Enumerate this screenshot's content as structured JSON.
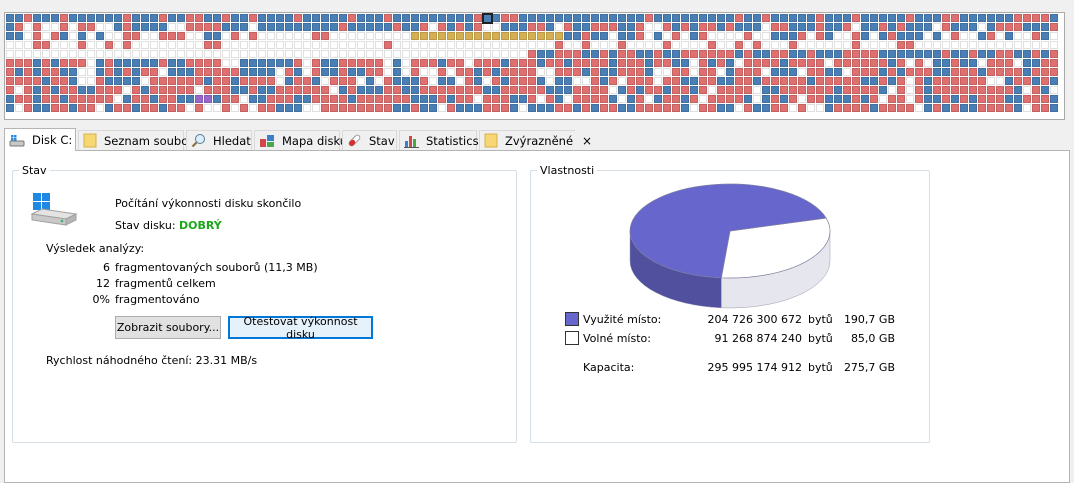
{
  "tabs": [
    {
      "label": "Disk C:",
      "icon": "hard-drive-icon"
    },
    {
      "label": "Seznam souborů",
      "icon": "folder-icon"
    },
    {
      "label": "Hledat",
      "icon": "magnifier-icon"
    },
    {
      "label": "Mapa disku",
      "icon": "disk-map-icon"
    },
    {
      "label": "Stav",
      "icon": "pill-icon"
    },
    {
      "label": "Statistics",
      "icon": "bar-chart-icon"
    },
    {
      "label": "Zvýrazněné",
      "icon": "folder-icon"
    }
  ],
  "tab_close_glyph": "×",
  "status": {
    "legend": "Stav",
    "message": "Počítání výkonnosti disku skončilo",
    "disk_state_label": "Stav disku:",
    "disk_state_value": "DOBRÝ",
    "disk_state_color": "#1aa81a",
    "analysis_heading": "Výsledek analýzy:",
    "rows": [
      {
        "value": "6",
        "text": "fragmentovaných souborů (11,3 MB)"
      },
      {
        "value": "12",
        "text": "fragmentů celkem"
      },
      {
        "value": "0%",
        "text": "fragmentováno"
      }
    ],
    "btn_show_files": "Zobrazit soubory...",
    "btn_test_perf": "Otestovat výkonnost disku",
    "read_speed": "Rychlost náhodného čtení: 23.31 MB/s"
  },
  "properties": {
    "legend": "Vlastnosti",
    "rows": [
      {
        "label": "Využité místo:",
        "bytes": "204 726 300 672",
        "unit": "bytů",
        "size": "190,7 GB",
        "color": "#6666cc"
      },
      {
        "label": "Volné místo:",
        "bytes": "91 268 874 240",
        "unit": "bytů",
        "size": "85,0 GB",
        "color": "#ffffff"
      }
    ],
    "capacity": {
      "label": "Kapacita:",
      "bytes": "295 995 174 912",
      "unit": "bytů",
      "size": "275,7 GB"
    },
    "pie": {
      "used_fraction": 0.6917,
      "used_color": "#6666cc",
      "free_color": "#ffffff"
    }
  },
  "disk_map": {
    "colors": {
      "fragmented": "#e07070",
      "file": "#4a7fb5",
      "free": "#ffffff",
      "system": "#d4b050",
      "special": "#9966cc"
    }
  }
}
